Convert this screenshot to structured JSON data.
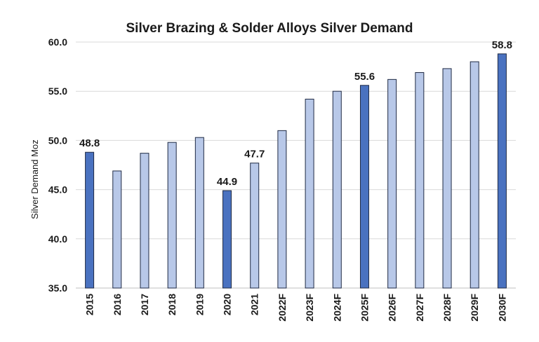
{
  "chart_data": {
    "type": "bar",
    "title": "Silver Brazing & Solder Alloys Silver Demand",
    "xlabel": "",
    "ylabel": "Silver Demand Moz",
    "ylim": [
      35.0,
      60.0
    ],
    "yticks": [
      "35.0",
      "40.0",
      "45.0",
      "50.0",
      "55.0",
      "60.0"
    ],
    "grid": true,
    "categories": [
      "2015",
      "2016",
      "2017",
      "2018",
      "2019",
      "2020",
      "2021",
      "2022F",
      "2023F",
      "2024F",
      "2025F",
      "2026F",
      "2027F",
      "2028F",
      "2029F",
      "2030F"
    ],
    "values": [
      48.8,
      46.9,
      48.7,
      49.8,
      50.3,
      44.9,
      47.7,
      51.0,
      54.2,
      55.0,
      55.6,
      56.2,
      56.9,
      57.3,
      58.0,
      58.8
    ],
    "highlighted": [
      "2015",
      "2020",
      "2025F",
      "2030F"
    ],
    "data_labels": {
      "2015": "48.8",
      "2020": "44.9",
      "2021": "47.7",
      "2025F": "55.6",
      "2030F": "58.8"
    },
    "colors": {
      "highlight": "#4a72c0",
      "normal": "#b8c8e8",
      "outline": "#1f2a44",
      "grid": "#d9d9d9"
    }
  }
}
